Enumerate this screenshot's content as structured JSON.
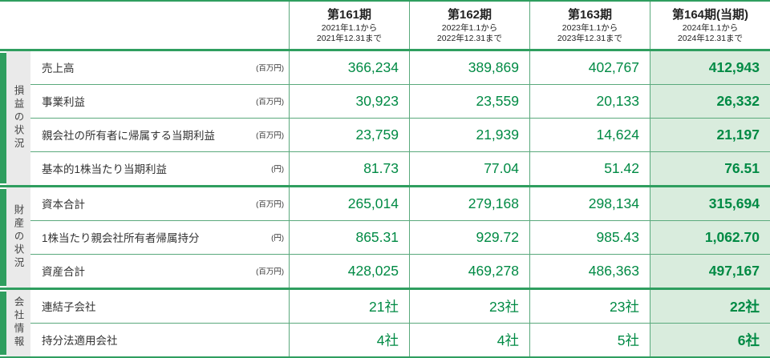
{
  "colors": {
    "accent": "#2f9e5f",
    "thin_line": "#5aa97c",
    "value_text": "#008a44",
    "current_bg": "#d9ecdd",
    "group_bg": "#eaeaea"
  },
  "header": {
    "periods": [
      {
        "title": "第161期",
        "from": "2021年1.1から",
        "to": "2021年12.31まで"
      },
      {
        "title": "第162期",
        "from": "2022年1.1から",
        "to": "2022年12.31まで"
      },
      {
        "title": "第163期",
        "from": "2023年1.1から",
        "to": "2023年12.31まで"
      },
      {
        "title": "第164期(当期)",
        "from": "2024年1.1から",
        "to": "2024年12.31まで"
      }
    ]
  },
  "groups": [
    {
      "label": "損益の状況",
      "rows": [
        {
          "label": "売上高",
          "unit": "(百万円)",
          "values": [
            "366,234",
            "389,869",
            "402,767",
            "412,943"
          ]
        },
        {
          "label": "事業利益",
          "unit": "(百万円)",
          "values": [
            "30,923",
            "23,559",
            "20,133",
            "26,332"
          ]
        },
        {
          "label": "親会社の所有者に帰属する当期利益",
          "unit": "(百万円)",
          "values": [
            "23,759",
            "21,939",
            "14,624",
            "21,197"
          ]
        },
        {
          "label": "基本的1株当たり当期利益",
          "unit": "(円)",
          "values": [
            "81.73",
            "77.04",
            "51.42",
            "76.51"
          ]
        }
      ]
    },
    {
      "label": "財産の状況",
      "rows": [
        {
          "label": "資本合計",
          "unit": "(百万円)",
          "values": [
            "265,014",
            "279,168",
            "298,134",
            "315,694"
          ]
        },
        {
          "label": "1株当たり親会社所有者帰属持分",
          "unit": "(円)",
          "values": [
            "865.31",
            "929.72",
            "985.43",
            "1,062.70"
          ]
        },
        {
          "label": "資産合計",
          "unit": "(百万円)",
          "values": [
            "428,025",
            "469,278",
            "486,363",
            "497,167"
          ]
        }
      ]
    },
    {
      "label": "会社情報",
      "rows": [
        {
          "label": "連結子会社",
          "unit": "",
          "values": [
            "21社",
            "23社",
            "23社",
            "22社"
          ]
        },
        {
          "label": "持分法適用会社",
          "unit": "",
          "values": [
            "4社",
            "4社",
            "5社",
            "6社"
          ]
        }
      ]
    }
  ]
}
